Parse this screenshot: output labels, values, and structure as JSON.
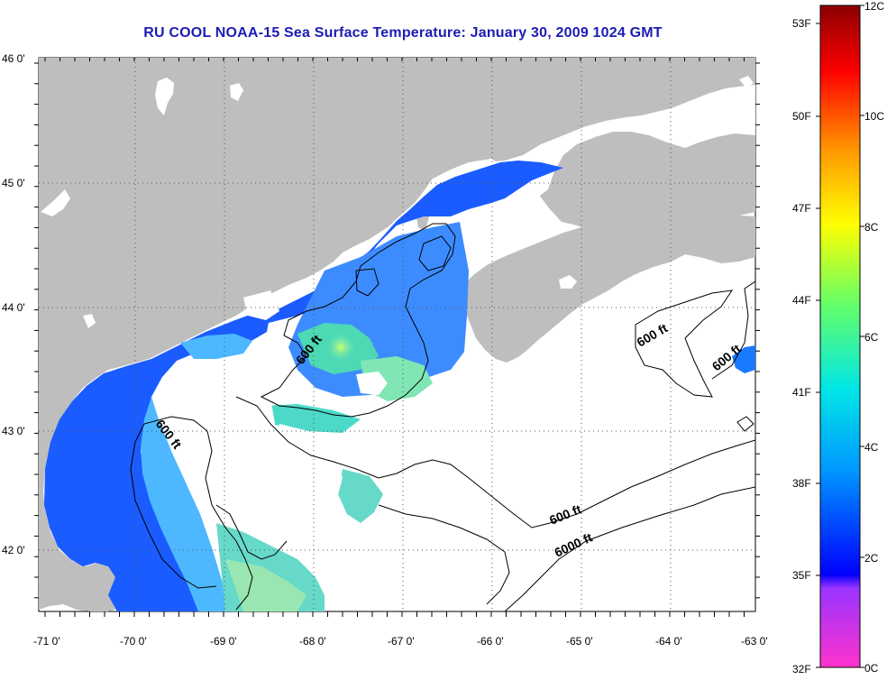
{
  "title": "RU COOL  NOAA-15  Sea Surface Temperature:  January 30, 2009 1024 GMT",
  "map": {
    "lon_ticks": [
      "-71 0'",
      "-70 0'",
      "-69 0'",
      "-68 0'",
      "-67 0'",
      "-66 0'",
      "-65 0'",
      "-64 0'",
      "-63 0'"
    ],
    "lat_ticks": [
      "46 0'",
      "45 0'",
      "44 0'",
      "43 0'",
      "42 0'"
    ],
    "land_color": "#bebebe",
    "no_data_color": "#ffffff",
    "contour_labels": [
      "600 ft",
      "600 ft",
      "600 ft",
      "600 ft",
      "600 ft",
      "6000 ft"
    ]
  },
  "colorbar": {
    "fahrenheit_labels": [
      "53F",
      "50F",
      "47F",
      "44F",
      "41F",
      "38F",
      "35F",
      "32F"
    ],
    "celsius_labels": [
      "12C",
      "10C",
      "8C",
      "6C",
      "4C",
      "2C",
      "0C"
    ],
    "colors": [
      "#8b0000",
      "#ff0000",
      "#ff8c00",
      "#ffff00",
      "#7fff00",
      "#00ffcc",
      "#00bfff",
      "#0000ff",
      "#9932cc",
      "#ff00ff"
    ]
  }
}
